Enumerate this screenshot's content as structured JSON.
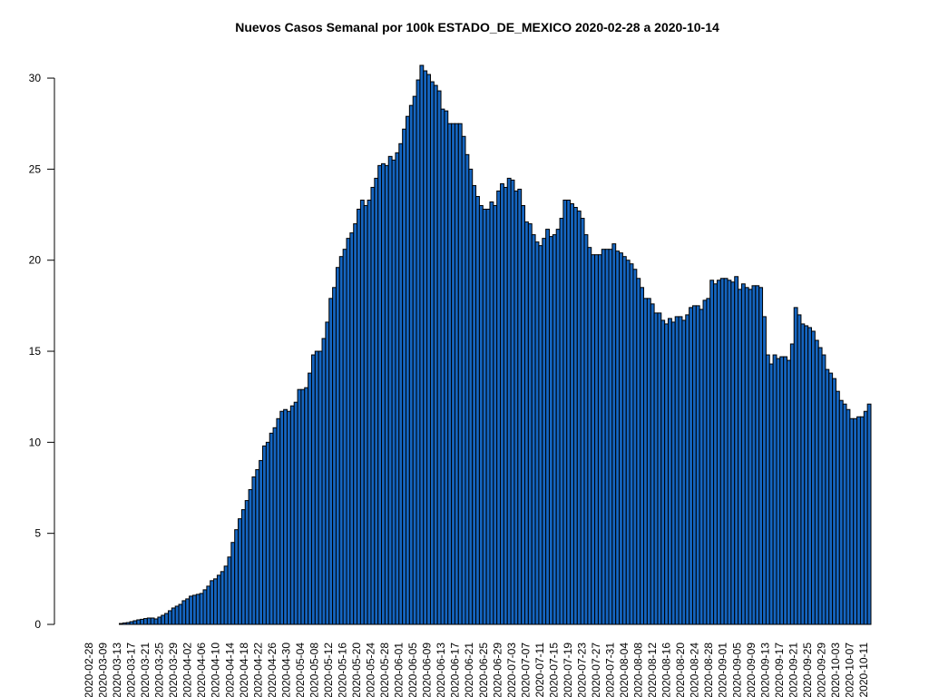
{
  "chart_data": {
    "type": "bar",
    "title": "Nuevos Casos Semanal por 100k ESTADO_DE_MEXICO 2020-02-28 a 2020-10-14",
    "xlabel": "",
    "ylabel": "",
    "ylim": [
      0,
      31
    ],
    "yticks": [
      0,
      5,
      10,
      15,
      20,
      25,
      30
    ],
    "start_date": "2020-02-28",
    "end_date": "2020-10-14",
    "xtick_labels": [
      "2020-02-28",
      "2020-03-09",
      "2020-03-13",
      "2020-03-17",
      "2020-03-21",
      "2020-03-25",
      "2020-03-29",
      "2020-04-02",
      "2020-04-06",
      "2020-04-10",
      "2020-04-14",
      "2020-04-18",
      "2020-04-22",
      "2020-04-26",
      "2020-04-30",
      "2020-05-04",
      "2020-05-08",
      "2020-05-12",
      "2020-05-16",
      "2020-05-20",
      "2020-05-24",
      "2020-05-28",
      "2020-06-01",
      "2020-06-05",
      "2020-06-09",
      "2020-06-13",
      "2020-06-17",
      "2020-06-21",
      "2020-06-25",
      "2020-06-29",
      "2020-07-03",
      "2020-07-07",
      "2020-07-11",
      "2020-07-15",
      "2020-07-19",
      "2020-07-23",
      "2020-07-27",
      "2020-07-31",
      "2020-08-04",
      "2020-08-08",
      "2020-08-12",
      "2020-08-16",
      "2020-08-20",
      "2020-08-24",
      "2020-08-28",
      "2020-09-01",
      "2020-09-05",
      "2020-09-09",
      "2020-09-13",
      "2020-09-17",
      "2020-09-21",
      "2020-09-25",
      "2020-09-29",
      "2020-10-03",
      "2020-10-07",
      "2020-10-11"
    ],
    "values": [
      0,
      0,
      0,
      0,
      0,
      0,
      0,
      0,
      0,
      0,
      0.05,
      0.08,
      0.1,
      0.15,
      0.2,
      0.25,
      0.28,
      0.32,
      0.35,
      0.35,
      0.3,
      0.4,
      0.5,
      0.6,
      0.75,
      0.9,
      1.0,
      1.1,
      1.3,
      1.4,
      1.55,
      1.6,
      1.65,
      1.7,
      1.9,
      2.1,
      2.4,
      2.5,
      2.7,
      2.9,
      3.2,
      3.7,
      4.5,
      5.2,
      5.8,
      6.3,
      6.8,
      7.4,
      8.1,
      8.5,
      9.0,
      9.8,
      10.0,
      10.5,
      10.8,
      11.3,
      11.7,
      11.8,
      11.7,
      12.0,
      12.2,
      12.9,
      12.9,
      13.0,
      13.8,
      14.8,
      15.0,
      15.0,
      15.7,
      16.6,
      17.9,
      18.5,
      19.6,
      20.2,
      20.6,
      21.2,
      21.5,
      22.0,
      22.8,
      23.3,
      23.0,
      23.3,
      24.0,
      24.5,
      25.2,
      25.3,
      25.2,
      25.7,
      25.5,
      25.9,
      26.4,
      27.2,
      27.9,
      28.5,
      29.0,
      29.9,
      30.7,
      30.4,
      30.2,
      29.8,
      29.6,
      29.3,
      28.3,
      28.2,
      27.5,
      27.5,
      27.5,
      27.5,
      26.8,
      25.8,
      25.0,
      24.1,
      23.5,
      23.0,
      22.8,
      22.8,
      23.2,
      23.0,
      23.8,
      24.2,
      24.0,
      24.5,
      24.4,
      23.8,
      23.9,
      23.0,
      22.1,
      22.0,
      21.4,
      21.0,
      20.8,
      21.2,
      21.7,
      21.3,
      21.4,
      21.7,
      22.3,
      23.3,
      23.3,
      23.1,
      22.9,
      22.7,
      22.3,
      21.4,
      20.7,
      20.3,
      20.3,
      20.3,
      20.6,
      20.6,
      20.6,
      20.9,
      20.5,
      20.4,
      20.2,
      20.0,
      19.8,
      19.5,
      19.0,
      18.5,
      17.9,
      17.9,
      17.6,
      17.1,
      17.1,
      16.7,
      16.5,
      16.8,
      16.6,
      16.9,
      16.9,
      16.7,
      17.0,
      17.4,
      17.5,
      17.5,
      17.3,
      17.8,
      17.9,
      18.9,
      18.7,
      18.9,
      19.0,
      19.0,
      18.9,
      18.8,
      19.1,
      18.4,
      18.7,
      18.5,
      18.4,
      18.6,
      18.6,
      18.5,
      16.9,
      14.8,
      14.3,
      14.8,
      14.6,
      14.7,
      14.7,
      14.5,
      15.4,
      17.4,
      17.0,
      16.5,
      16.4,
      16.3,
      16.1,
      15.6,
      15.2,
      14.8,
      14.0,
      13.8,
      13.5,
      12.8,
      12.3,
      12.1,
      11.8,
      11.3,
      11.3,
      11.4,
      11.4,
      11.7,
      12.1
    ]
  }
}
